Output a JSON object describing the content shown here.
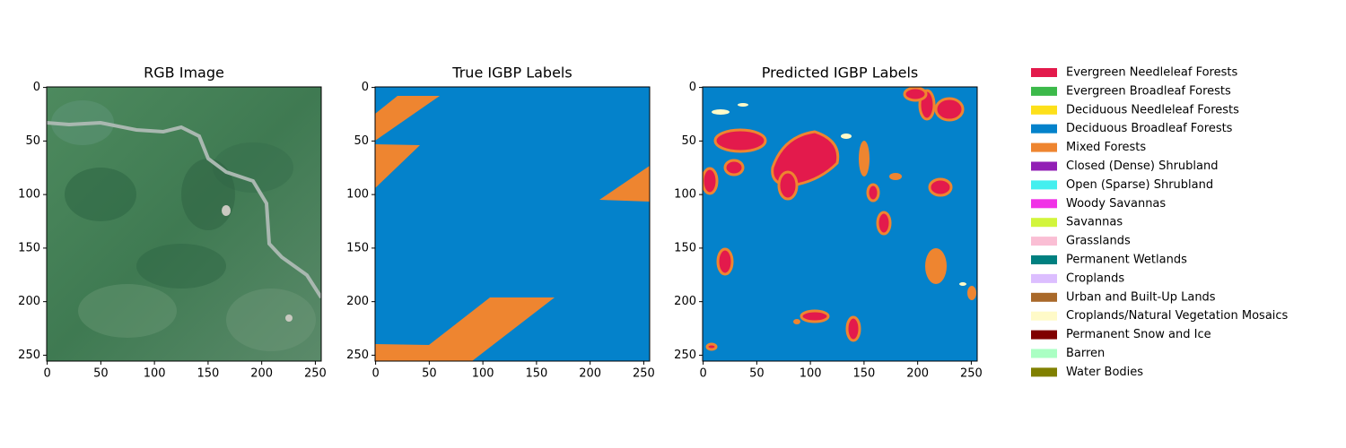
{
  "chart_data": [
    {
      "type": "image",
      "title": "RGB Image",
      "xlim": [
        -0.5,
        255.5
      ],
      "ylim": [
        255.5,
        -0.5
      ],
      "xticks": [
        0,
        50,
        100,
        150,
        200,
        250
      ],
      "yticks": [
        0,
        50,
        100,
        150,
        200,
        250
      ]
    },
    {
      "type": "image",
      "title": "True IGBP Labels",
      "xlim": [
        -0.5,
        255.5
      ],
      "ylim": [
        255.5,
        -0.5
      ],
      "xticks": [
        0,
        50,
        100,
        150,
        200,
        250
      ],
      "yticks": [
        0,
        50,
        100,
        150,
        200,
        250
      ]
    },
    {
      "type": "image",
      "title": "Predicted IGBP Labels",
      "xlim": [
        -0.5,
        255.5
      ],
      "ylim": [
        255.5,
        -0.5
      ],
      "xticks": [
        0,
        50,
        100,
        150,
        200,
        250
      ],
      "yticks": [
        0,
        50,
        100,
        150,
        200,
        250
      ]
    }
  ],
  "legend": {
    "entries": [
      {
        "name": "Evergreen Needleleaf Forests",
        "color": "#e31a4c"
      },
      {
        "name": "Evergreen Broadleaf Forests",
        "color": "#3cb94a"
      },
      {
        "name": "Deciduous Needleleaf Forests",
        "color": "#fde01a"
      },
      {
        "name": "Deciduous Broadleaf Forests",
        "color": "#0482cb"
      },
      {
        "name": "Mixed Forests",
        "color": "#ee8530"
      },
      {
        "name": "Closed (Dense) Shrubland",
        "color": "#921fb5"
      },
      {
        "name": "Open (Sparse) Shrubland",
        "color": "#44efef"
      },
      {
        "name": "Woody Savannas",
        "color": "#f032e6"
      },
      {
        "name": "Savannas",
        "color": "#d2f53c"
      },
      {
        "name": "Grasslands",
        "color": "#fabed4"
      },
      {
        "name": "Permanent Wetlands",
        "color": "#008080"
      },
      {
        "name": "Croplands",
        "color": "#dcbeff"
      },
      {
        "name": "Urban and Built-Up Lands",
        "color": "#a9692a"
      },
      {
        "name": "Croplands/Natural Vegetation Mosaics",
        "color": "#fffac8"
      },
      {
        "name": "Permanent Snow and Ice",
        "color": "#800000"
      },
      {
        "name": "Barren",
        "color": "#aaffc3"
      },
      {
        "name": "Water Bodies",
        "color": "#808000"
      }
    ]
  }
}
